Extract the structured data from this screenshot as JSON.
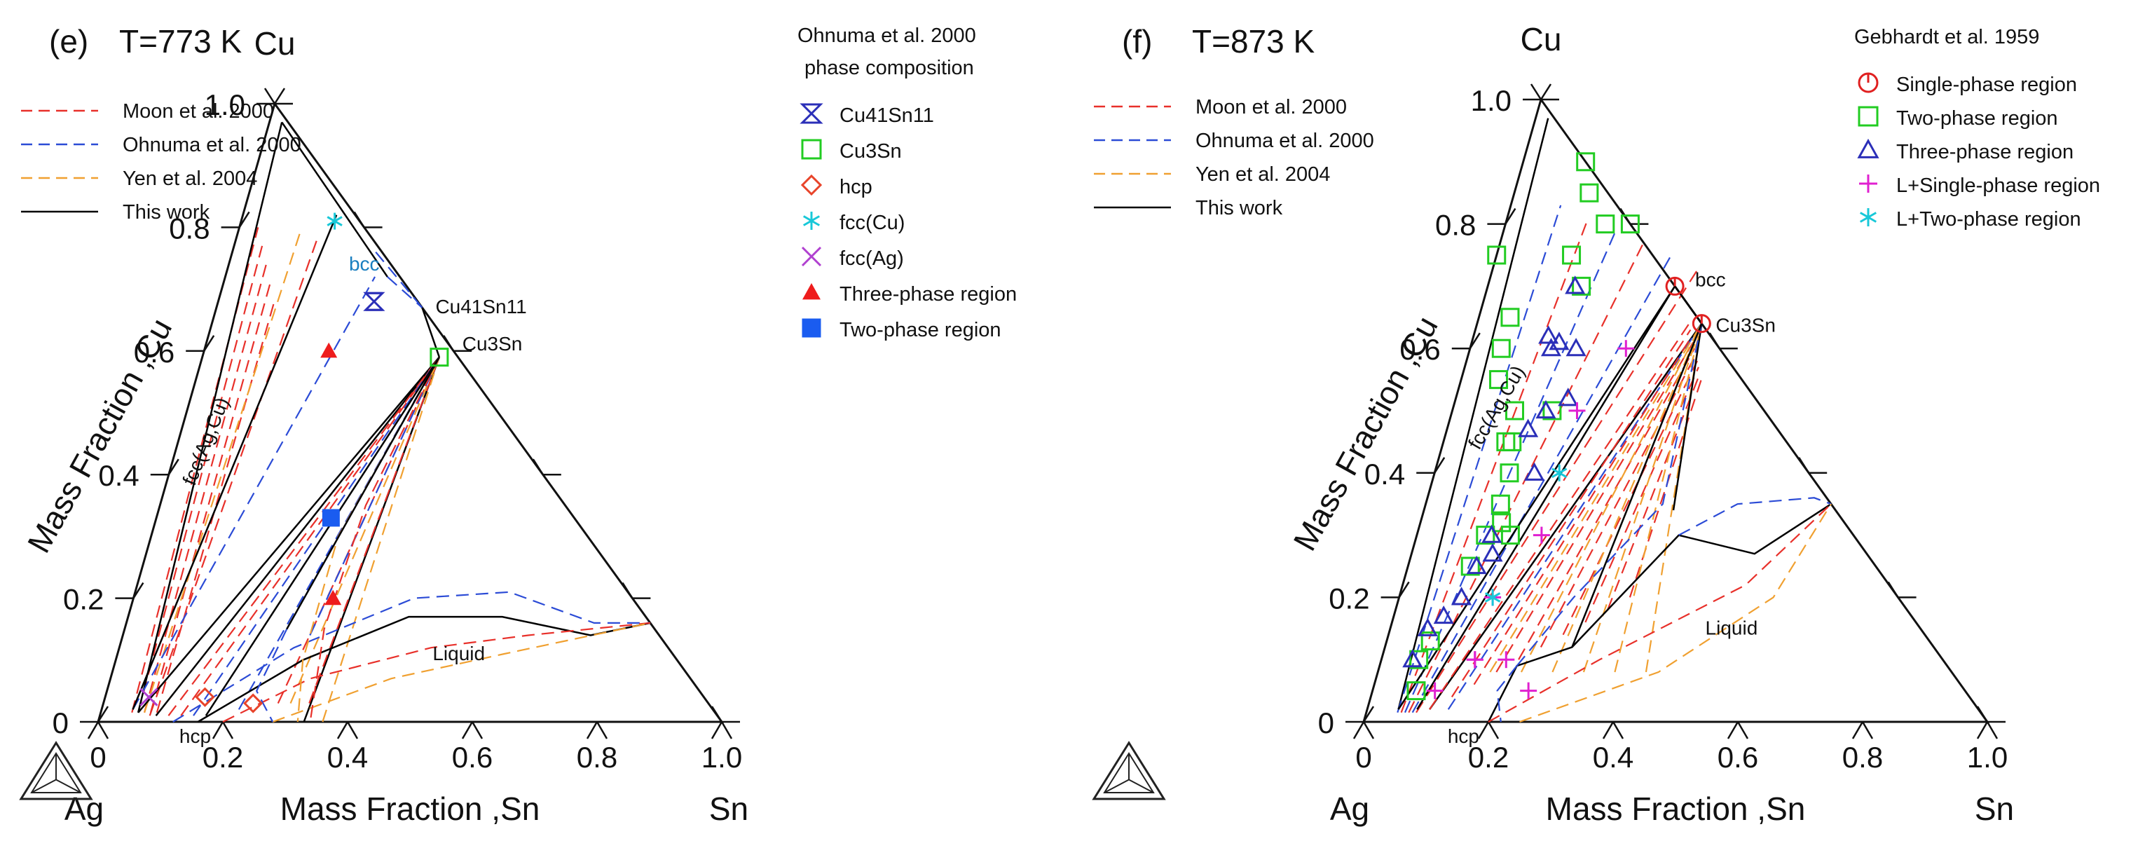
{
  "chart_data": [
    {
      "type": "ternary_phase_diagram",
      "panel_label": "(e)",
      "title": "T=773 K",
      "apex_top": "Cu",
      "apex_left": "Ag",
      "apex_right": "Sn",
      "xlabel": "Mass Fraction ,Sn",
      "ylabel": "Mass Fraction ,Cu",
      "ticks": [
        "0",
        "0.2",
        "0.4",
        "0.6",
        "0.8",
        "1.0"
      ],
      "tick_values": [
        0,
        0.2,
        0.4,
        0.6,
        0.8,
        1.0
      ],
      "line_legend": [
        {
          "label": "Moon et al. 2000",
          "color": "#e8302a",
          "dash": "dashed"
        },
        {
          "label": "Ohnuma et al. 2000",
          "color": "#2b4bd6",
          "dash": "dashed"
        },
        {
          "label": "Yen et al. 2004",
          "color": "#f0a030",
          "dash": "dashed"
        },
        {
          "label": "This work",
          "color": "#000000",
          "dash": "solid"
        }
      ],
      "marker_legend_title": [
        "Ohnuma et al. 2000",
        "phase composition"
      ],
      "marker_legend": [
        {
          "label": "Cu41Sn11",
          "symbol": "hourglass",
          "color": "#2b2fb8"
        },
        {
          "label": "Cu3Sn",
          "symbol": "square-open",
          "color": "#22cc22"
        },
        {
          "label": "hcp",
          "symbol": "diamond-open",
          "color": "#e8442a"
        },
        {
          "label": "fcc(Cu)",
          "symbol": "asterisk",
          "color": "#18c8d8"
        },
        {
          "label": "fcc(Ag)",
          "symbol": "x",
          "color": "#b040d0"
        },
        {
          "label": "Three-phase region",
          "symbol": "triangle-filled",
          "color": "#ee1c1c"
        },
        {
          "label": "Two-phase region",
          "symbol": "square-filled",
          "color": "#1a5cf0"
        }
      ],
      "annotations": [
        "bcc",
        "Cu41Sn11",
        "Cu3Sn",
        "fcc(Ag,Cu)",
        "Liquid",
        "hcp"
      ],
      "points": [
        {
          "phase": "fcc(Cu)",
          "sn": 0.15,
          "cu": 0.81
        },
        {
          "phase": "Cu41Sn11",
          "sn": 0.25,
          "cu": 0.68
        },
        {
          "phase": "Cu3Sn",
          "sn": 0.38,
          "cu": 0.59
        },
        {
          "phase": "fcc(Ag)",
          "sn": 0.07,
          "cu": 0.04
        },
        {
          "phase": "hcp",
          "sn": 0.16,
          "cu": 0.04
        },
        {
          "phase": "hcp",
          "sn": 0.24,
          "cu": 0.03
        },
        {
          "phase": "Three-phase region",
          "sn": 0.2,
          "cu": 0.6
        },
        {
          "phase": "Three-phase region",
          "sn": 0.32,
          "cu": 0.2
        },
        {
          "phase": "Two-phase region",
          "sn": 0.28,
          "cu": 0.33
        }
      ]
    },
    {
      "type": "ternary_phase_diagram",
      "panel_label": "(f)",
      "title": "T=873 K",
      "apex_top": "Cu",
      "apex_left": "Ag",
      "apex_right": "Sn",
      "xlabel": "Mass Fraction ,Sn",
      "ylabel": "Mass Fraction ,Cu",
      "ticks": [
        "0",
        "0.2",
        "0.4",
        "0.6",
        "0.8",
        "1.0"
      ],
      "tick_values": [
        0,
        0.2,
        0.4,
        0.6,
        0.8,
        1.0
      ],
      "line_legend": [
        {
          "label": "Moon et al. 2000",
          "color": "#e8302a",
          "dash": "dashed"
        },
        {
          "label": "Ohnuma et al. 2000",
          "color": "#2b4bd6",
          "dash": "dashed"
        },
        {
          "label": "Yen et al. 2004",
          "color": "#f0a030",
          "dash": "dashed"
        },
        {
          "label": "This work",
          "color": "#000000",
          "dash": "solid"
        }
      ],
      "marker_legend_title": [
        "Gebhardt et al. 1959"
      ],
      "marker_legend": [
        {
          "label": "Single-phase region",
          "symbol": "circle-open",
          "color": "#e02020"
        },
        {
          "label": "Two-phase region",
          "symbol": "square-open",
          "color": "#22cc22"
        },
        {
          "label": "Three-phase region",
          "symbol": "triangle-open",
          "color": "#2b2fb8"
        },
        {
          "label": "L+Single-phase region",
          "symbol": "plus",
          "color": "#e020d0"
        },
        {
          "label": "L+Two-phase region",
          "symbol": "asterisk",
          "color": "#18c8d8"
        }
      ],
      "annotations": [
        "bcc",
        "Cu3Sn",
        "fcc(Ag,Cu)",
        "Liquid",
        "hcp"
      ],
      "points": [
        {
          "phase": "Single-phase region",
          "sn": 0.3,
          "cu": 0.7
        },
        {
          "phase": "Single-phase region",
          "sn": 0.36,
          "cu": 0.64
        },
        {
          "phase": "Two-phase region",
          "sn": 0.06,
          "cu": 0.1
        },
        {
          "phase": "Two-phase region",
          "sn": 0.07,
          "cu": 0.05
        },
        {
          "phase": "Two-phase region",
          "sn": 0.07,
          "cu": 0.13
        },
        {
          "phase": "Two-phase region",
          "sn": 0.1,
          "cu": 0.25
        },
        {
          "phase": "Two-phase region",
          "sn": 0.11,
          "cu": 0.3
        },
        {
          "phase": "Two-phase region",
          "sn": 0.13,
          "cu": 0.32
        },
        {
          "phase": "Two-phase region",
          "sn": 0.15,
          "cu": 0.3
        },
        {
          "phase": "Two-phase region",
          "sn": 0.12,
          "cu": 0.35
        },
        {
          "phase": "Two-phase region",
          "sn": 0.11,
          "cu": 0.45
        },
        {
          "phase": "Two-phase region",
          "sn": 0.12,
          "cu": 0.4
        },
        {
          "phase": "Two-phase region",
          "sn": 0.1,
          "cu": 0.5
        },
        {
          "phase": "Two-phase region",
          "sn": 0.1,
          "cu": 0.45
        },
        {
          "phase": "Two-phase region",
          "sn": 0.05,
          "cu": 0.6
        },
        {
          "phase": "Two-phase region",
          "sn": 0.06,
          "cu": 0.55
        },
        {
          "phase": "Two-phase region",
          "sn": 0.05,
          "cu": 0.65
        },
        {
          "phase": "Two-phase region",
          "sn": 0.0,
          "cu": 0.75
        },
        {
          "phase": "Two-phase region",
          "sn": 0.12,
          "cu": 0.75
        },
        {
          "phase": "Two-phase region",
          "sn": 0.1,
          "cu": 0.9
        },
        {
          "phase": "Two-phase region",
          "sn": 0.12,
          "cu": 0.85
        },
        {
          "phase": "Two-phase region",
          "sn": 0.16,
          "cu": 0.8
        },
        {
          "phase": "Two-phase region",
          "sn": 0.2,
          "cu": 0.8
        },
        {
          "phase": "Two-phase region",
          "sn": 0.15,
          "cu": 0.7
        },
        {
          "phase": "Two-phase region",
          "sn": 0.16,
          "cu": 0.5
        },
        {
          "phase": "Three-phase region",
          "sn": 0.05,
          "cu": 0.1
        },
        {
          "phase": "Three-phase region",
          "sn": 0.06,
          "cu": 0.15
        },
        {
          "phase": "Three-phase region",
          "sn": 0.08,
          "cu": 0.17
        },
        {
          "phase": "Three-phase region",
          "sn": 0.1,
          "cu": 0.2
        },
        {
          "phase": "Three-phase region",
          "sn": 0.11,
          "cu": 0.25
        },
        {
          "phase": "Three-phase region",
          "sn": 0.13,
          "cu": 0.27
        },
        {
          "phase": "Three-phase region",
          "sn": 0.12,
          "cu": 0.3
        },
        {
          "phase": "Three-phase region",
          "sn": 0.16,
          "cu": 0.4
        },
        {
          "phase": "Three-phase region",
          "sn": 0.13,
          "cu": 0.47
        },
        {
          "phase": "Three-phase region",
          "sn": 0.15,
          "cu": 0.5
        },
        {
          "phase": "Three-phase region",
          "sn": 0.18,
          "cu": 0.52
        },
        {
          "phase": "Three-phase region",
          "sn": 0.13,
          "cu": 0.6
        },
        {
          "phase": "Three-phase region",
          "sn": 0.12,
          "cu": 0.62
        },
        {
          "phase": "Three-phase region",
          "sn": 0.14,
          "cu": 0.61
        },
        {
          "phase": "Three-phase region",
          "sn": 0.17,
          "cu": 0.6
        },
        {
          "phase": "Three-phase region",
          "sn": 0.14,
          "cu": 0.7
        },
        {
          "phase": "L+Single-phase region",
          "sn": 0.25,
          "cu": 0.6
        },
        {
          "phase": "L+Single-phase region",
          "sn": 0.2,
          "cu": 0.5
        },
        {
          "phase": "L+Single-phase region",
          "sn": 0.15,
          "cu": 0.2
        },
        {
          "phase": "L+Single-phase region",
          "sn": 0.15,
          "cu": 0.1
        },
        {
          "phase": "L+Single-phase region",
          "sn": 0.2,
          "cu": 0.3
        },
        {
          "phase": "L+Single-phase region",
          "sn": 0.15,
          "cu": 0.1
        },
        {
          "phase": "L+Single-phase region",
          "sn": 0.2,
          "cu": 0.1
        },
        {
          "phase": "L+Single-phase region",
          "sn": 0.25,
          "cu": 0.05
        },
        {
          "phase": "L+Single-phase region",
          "sn": 0.1,
          "cu": 0.05
        },
        {
          "phase": "L+Two-phase region",
          "sn": 0.15,
          "cu": 0.2
        },
        {
          "phase": "L+Two-phase region",
          "sn": 0.2,
          "cu": 0.4
        }
      ]
    }
  ]
}
